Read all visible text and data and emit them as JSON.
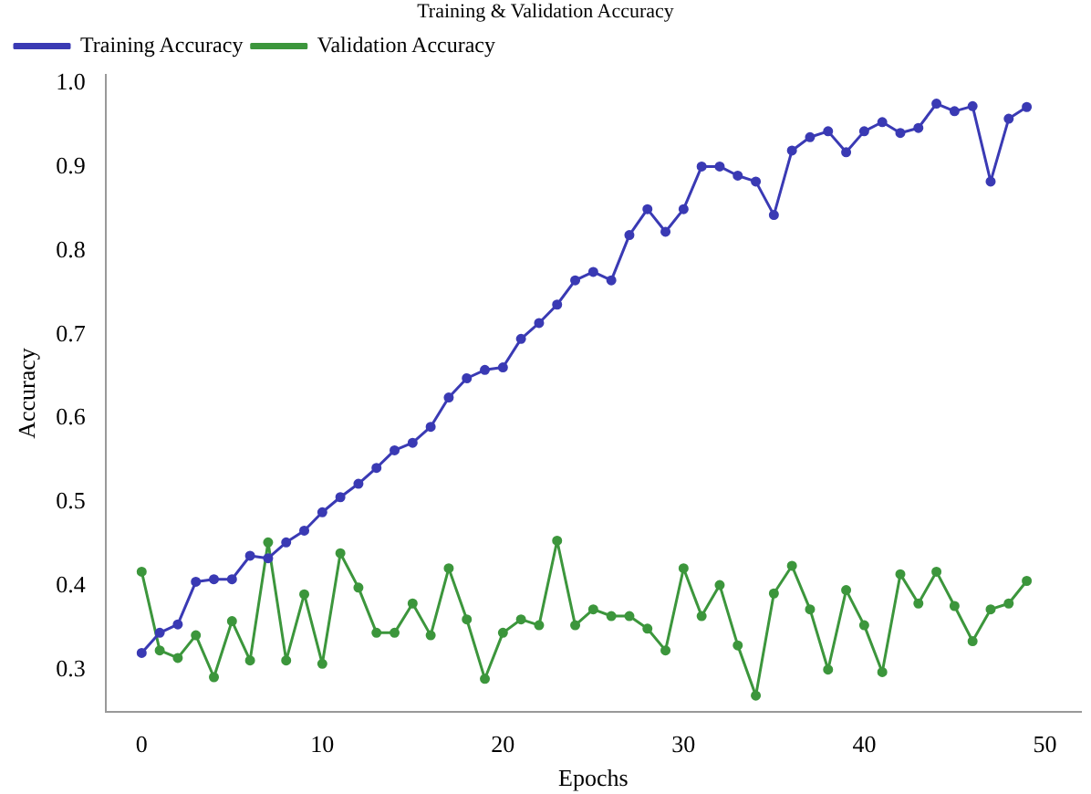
{
  "chart_data": {
    "type": "line",
    "title": "Training & Validation Accuracy",
    "xlabel": "Epochs",
    "ylabel": "Accuracy",
    "x": [
      0,
      1,
      2,
      3,
      4,
      5,
      6,
      7,
      8,
      9,
      10,
      11,
      12,
      13,
      14,
      15,
      16,
      17,
      18,
      19,
      20,
      21,
      22,
      23,
      24,
      25,
      26,
      27,
      28,
      29,
      30,
      31,
      32,
      33,
      34,
      35,
      36,
      37,
      38,
      39,
      40,
      41,
      42,
      43,
      44,
      45,
      46,
      47,
      48,
      49
    ],
    "series": [
      {
        "name": "Training Accuracy",
        "color": "#3a3ab4",
        "values": [
          0.32,
          0.344,
          0.354,
          0.405,
          0.408,
          0.408,
          0.436,
          0.433,
          0.452,
          0.466,
          0.488,
          0.506,
          0.522,
          0.541,
          0.562,
          0.571,
          0.59,
          0.625,
          0.648,
          0.658,
          0.661,
          0.695,
          0.714,
          0.736,
          0.765,
          0.775,
          0.765,
          0.819,
          0.85,
          0.823,
          0.85,
          0.901,
          0.901,
          0.89,
          0.883,
          0.843,
          0.92,
          0.936,
          0.943,
          0.918,
          0.943,
          0.954,
          0.941,
          0.947,
          0.976,
          0.967,
          0.973,
          0.883,
          0.958,
          0.972
        ]
      },
      {
        "name": "Validation Accuracy",
        "color": "#3c963c",
        "values": [
          0.417,
          0.323,
          0.314,
          0.341,
          0.291,
          0.358,
          0.311,
          0.452,
          0.311,
          0.39,
          0.307,
          0.439,
          0.398,
          0.344,
          0.344,
          0.379,
          0.341,
          0.421,
          0.36,
          0.289,
          0.344,
          0.36,
          0.353,
          0.454,
          0.353,
          0.372,
          0.364,
          0.364,
          0.349,
          0.323,
          0.421,
          0.364,
          0.401,
          0.329,
          0.269,
          0.391,
          0.424,
          0.372,
          0.3,
          0.395,
          0.353,
          0.297,
          0.414,
          0.379,
          0.417,
          0.376,
          0.334,
          0.372,
          0.379,
          0.406
        ]
      }
    ],
    "xlim": [
      -2,
      52
    ],
    "xticks": [
      0,
      10,
      20,
      30,
      40,
      50
    ],
    "ylim": [
      0.25,
      1.01
    ],
    "yticks": [
      {
        "value": 0.3,
        "label": "0.3"
      },
      {
        "value": 0.4,
        "label": "0.4"
      },
      {
        "value": 0.5,
        "label": "0.5"
      },
      {
        "value": 0.6,
        "label": "0.6"
      },
      {
        "value": 0.7,
        "label": "0.7"
      },
      {
        "value": 0.8,
        "label": "0.8"
      },
      {
        "value": 0.9,
        "label": "0.9"
      },
      {
        "value": 1.0,
        "label": "1.0"
      }
    ],
    "grid": false,
    "legend": "top left",
    "marker": "circle",
    "line_style": "solid"
  }
}
